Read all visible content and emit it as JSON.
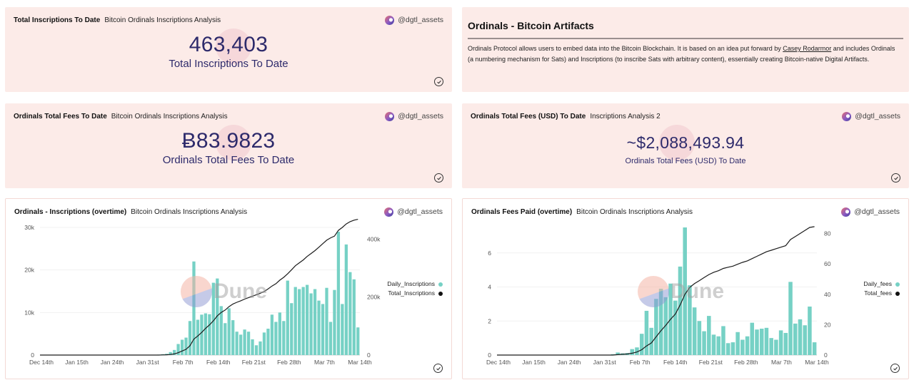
{
  "author": "@dgtl_assets",
  "cards": {
    "total_inscriptions": {
      "title": "Total Inscriptions To Date",
      "subtitle": "Bitcoin Ordinals Inscriptions Analysis",
      "value": "463,403",
      "label": "Total Inscriptions To Date"
    },
    "total_fees": {
      "title": "Ordinals Total Fees To Date",
      "subtitle": "Bitcoin Ordinals Inscriptions Analysis",
      "value": "Ƀ83.9823",
      "label": "Ordinals Total Fees To Date"
    },
    "total_fees_usd": {
      "title": "Ordinals Total Fees (USD) To Date",
      "subtitle": "Inscriptions Analysis 2",
      "value": "~$2,088,493.94",
      "label": "Ordinals Total Fees (USD) To Date"
    },
    "artifacts": {
      "heading": "Ordinals - Bitcoin Artifacts",
      "text_before_link": "Ordinals Protocol allows users to embed data into the Bitcoin Blockchain. It is based on an idea put forward by ",
      "link_text": "Casey Rodarmor",
      "text_after_link": " and includes Ordinals (a numbering mechanism for Sats) and Inscriptions (to inscribe Sats with arbitrary content), essentially creating Bitcoin-native Digital Artifacts."
    },
    "inscriptions_chart": {
      "title": "Ordinals - Inscriptions (overtime)",
      "subtitle": "Bitcoin Ordinals Inscriptions Analysis",
      "watermark": "Dune"
    },
    "fees_chart": {
      "title": "Ordinals Fees Paid (overtime)",
      "subtitle": "Bitcoin Ordinals Inscriptions Analysis",
      "watermark": "Dune"
    }
  },
  "colors": {
    "bar": "#76d1c5",
    "line": "#1b1b1b",
    "counter_text": "#2d2a6b",
    "card_bg": "#fcebe8"
  },
  "chart_data": [
    {
      "id": "inscriptions",
      "type": "bar",
      "title": "Ordinals - Inscriptions (overtime)",
      "x_tick_labels": [
        "Dec 14th",
        "Jan 15th",
        "Jan 24th",
        "Jan 31st",
        "Feb 7th",
        "Feb 14th",
        "Feb 21st",
        "Feb 28th",
        "Mar 7th",
        "Mar 14th"
      ],
      "y_left": {
        "ticks": [
          "0",
          "10k",
          "20k",
          "30k"
        ],
        "range": [
          0,
          30000
        ]
      },
      "y_right": {
        "ticks": [
          "0",
          "200k",
          "400k"
        ],
        "range": [
          0,
          440000
        ]
      },
      "legend_position": "right",
      "series": [
        {
          "name": "Daily_Inscriptions",
          "axis": "left",
          "kind": "bar",
          "values": [
            100,
            200,
            300,
            700,
            1200,
            2600,
            3600,
            4100,
            8000,
            22000,
            8300,
            9500,
            9800,
            9600,
            17000,
            18000,
            11500,
            7500,
            11000,
            8200,
            5500,
            4800,
            6000,
            5500,
            3700,
            2300,
            3200,
            5300,
            6200,
            9500,
            7800,
            10000,
            8000,
            17500,
            12200,
            16000,
            15500,
            16000,
            16500,
            14500,
            15500,
            12800,
            12000,
            15800,
            7800,
            15300,
            29000,
            12000,
            26000,
            19500,
            17800,
            6500
          ]
        },
        {
          "name": "Total_Inscriptions",
          "axis": "right",
          "kind": "line",
          "values": [
            0,
            500,
            1000,
            2000,
            4000,
            8000,
            14000,
            20000,
            32000,
            55000,
            66000,
            78000,
            92000,
            104000,
            118000,
            135000,
            147000,
            155000,
            167000,
            176000,
            182000,
            187000,
            193000,
            198000,
            203000,
            208000,
            213000,
            219000,
            228000,
            238000,
            246000,
            258000,
            268000,
            280000,
            294000,
            308000,
            318000,
            328000,
            340000,
            350000,
            360000,
            372000,
            384000,
            396000,
            404000,
            410000,
            430000,
            440000,
            452000,
            460000,
            465000,
            468000
          ]
        }
      ]
    },
    {
      "id": "fees",
      "type": "bar",
      "title": "Ordinals Fees Paid (overtime)",
      "x_tick_labels": [
        "Dec 14th",
        "Jan 15th",
        "Jan 24th",
        "Jan 31st",
        "Feb 7th",
        "Feb 14th",
        "Feb 21st",
        "Feb 28th",
        "Mar 7th",
        "Mar 14th"
      ],
      "y_left": {
        "ticks": [
          "0",
          "2",
          "4",
          "6"
        ],
        "range": [
          0,
          7.5
        ]
      },
      "y_right": {
        "ticks": [
          "0",
          "20",
          "40",
          "60",
          "80"
        ],
        "range": [
          0,
          84
        ]
      },
      "legend_position": "right",
      "series": [
        {
          "name": "Daily_fees",
          "axis": "left",
          "kind": "bar",
          "values": [
            0.05,
            0.15,
            0.1,
            0.12,
            0.35,
            0.45,
            1.25,
            2.6,
            1.6,
            3.3,
            3.9,
            3.4,
            4.2,
            3.2,
            5.2,
            7.5,
            4.1,
            2.8,
            2.0,
            1.4,
            2.3,
            1.2,
            1.1,
            1.7,
            0.7,
            0.75,
            1.35,
            0.9,
            1.1,
            1.9,
            1.5,
            1.55,
            1.6,
            1.0,
            0.9,
            1.45,
            1.3,
            4.3,
            1.85,
            2.1,
            1.75,
            2.85,
            0.75
          ]
        },
        {
          "name": "Total_fees",
          "axis": "right",
          "kind": "line",
          "values": [
            0,
            0.3,
            0.5,
            0.7,
            1.2,
            2.0,
            3.5,
            6.0,
            8.0,
            12.0,
            16.0,
            19.5,
            23.5,
            27.0,
            33.0,
            40.0,
            44.5,
            47.0,
            49.0,
            51.0,
            53.0,
            54.5,
            55.5,
            57.0,
            57.8,
            58.5,
            59.8,
            61.0,
            62.0,
            63.5,
            65.0,
            66.5,
            68.0,
            69.0,
            70.0,
            71.0,
            72.0,
            76.0,
            78.0,
            80.0,
            82.0,
            84.0,
            84.5
          ]
        }
      ]
    }
  ]
}
